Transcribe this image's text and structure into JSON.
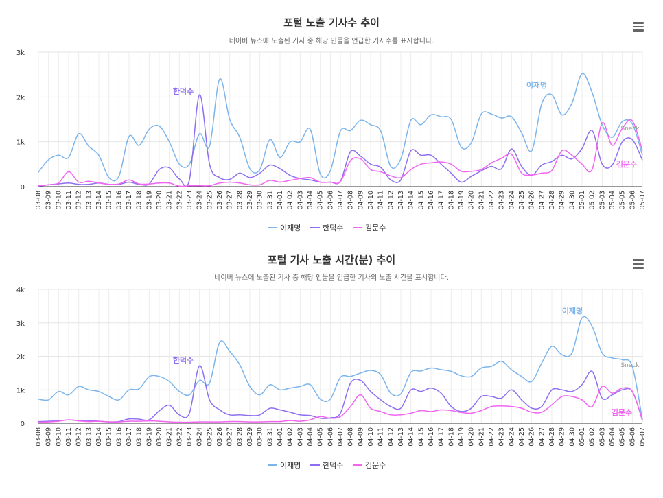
{
  "chart_data": [
    {
      "type": "line",
      "title": "포털 노출 기사수 추이",
      "subtitle": "네이버 뉴스에 노출된 기사 중 해당 인물을 언급한 기사수를 표시합니다.",
      "ylim": [
        0,
        3000
      ],
      "yticks": [
        "0",
        "1k",
        "2k",
        "3k"
      ],
      "categories": [
        "03-08",
        "03-09",
        "03-10",
        "03-11",
        "03-12",
        "03-13",
        "03-14",
        "03-15",
        "03-16",
        "03-17",
        "03-18",
        "03-19",
        "03-20",
        "03-21",
        "03-22",
        "03-23",
        "03-24",
        "03-25",
        "03-26",
        "03-27",
        "03-28",
        "03-29",
        "03-30",
        "03-31",
        "04-01",
        "04-02",
        "04-03",
        "04-04",
        "04-05",
        "04-06",
        "04-07",
        "04-08",
        "04-09",
        "04-10",
        "04-11",
        "04-12",
        "04-13",
        "04-14",
        "04-15",
        "04-16",
        "04-17",
        "04-18",
        "04-19",
        "04-20",
        "04-21",
        "04-22",
        "04-23",
        "04-24",
        "04-25",
        "04-26",
        "04-27",
        "04-28",
        "04-29",
        "04-30",
        "05-01",
        "05-02",
        "05-03",
        "05-04",
        "05-05",
        "05-06",
        "05-07"
      ],
      "series": [
        {
          "name": "이재명",
          "color": "#7cb5ec",
          "values": [
            320,
            600,
            700,
            650,
            1180,
            900,
            700,
            200,
            230,
            1120,
            920,
            1280,
            1350,
            1000,
            500,
            500,
            1180,
            900,
            2400,
            1500,
            1100,
            400,
            380,
            1050,
            650,
            1000,
            1000,
            1280,
            280,
            350,
            1240,
            1250,
            1480,
            1380,
            1240,
            450,
            620,
            1480,
            1380,
            1600,
            1560,
            1500,
            880,
            980,
            1620,
            1620,
            1530,
            1560,
            1200,
            800,
            1850,
            2050,
            1600,
            1860,
            2520,
            2100,
            1380,
            1100,
            1450,
            1400,
            700
          ]
        },
        {
          "name": "한덕수",
          "color": "#8e6ff1",
          "values": [
            10,
            40,
            60,
            80,
            50,
            50,
            80,
            50,
            50,
            100,
            50,
            60,
            380,
            420,
            170,
            150,
            2050,
            500,
            200,
            160,
            300,
            200,
            300,
            480,
            400,
            250,
            180,
            150,
            100,
            100,
            120,
            780,
            680,
            500,
            430,
            150,
            150,
            800,
            700,
            700,
            500,
            300,
            100,
            230,
            350,
            450,
            400,
            840,
            450,
            250,
            480,
            560,
            700,
            620,
            850,
            1250,
            500,
            480,
            1000,
            1050,
            590
          ]
        },
        {
          "name": "김문수",
          "color": "#f165f1",
          "values": [
            20,
            40,
            80,
            330,
            100,
            120,
            80,
            50,
            60,
            150,
            60,
            60,
            80,
            80,
            10,
            20,
            20,
            20,
            80,
            100,
            80,
            40,
            40,
            140,
            100,
            140,
            180,
            200,
            100,
            100,
            110,
            580,
            620,
            380,
            330,
            240,
            200,
            380,
            500,
            530,
            550,
            500,
            340,
            340,
            380,
            530,
            630,
            720,
            300,
            260,
            300,
            360,
            800,
            700,
            500,
            380,
            1420,
            920,
            1300,
            1470,
            800
          ]
        }
      ],
      "annotations": [
        "한덕수",
        "이재명",
        "Sneck",
        "김문수"
      ]
    },
    {
      "type": "line",
      "title": "포털 기사 노출 시간(분) 추이",
      "subtitle": "네이버 뉴스에 노출된 기사 중 해당 인물을 언급한 기사의 노출 시간을 표시합니다.",
      "ylim": [
        0,
        4000
      ],
      "yticks": [
        "0",
        "1k",
        "2k",
        "3k",
        "4k"
      ],
      "categories": [
        "03-08",
        "03-09",
        "03-10",
        "03-11",
        "03-12",
        "03-13",
        "03-14",
        "03-15",
        "03-16",
        "03-17",
        "03-18",
        "03-19",
        "03-20",
        "03-21",
        "03-22",
        "03-23",
        "03-24",
        "03-25",
        "03-26",
        "03-27",
        "03-28",
        "03-29",
        "03-30",
        "03-31",
        "04-01",
        "04-02",
        "04-03",
        "04-04",
        "04-05",
        "04-06",
        "04-07",
        "04-08",
        "04-09",
        "04-10",
        "04-11",
        "04-12",
        "04-13",
        "04-14",
        "04-15",
        "04-16",
        "04-17",
        "04-18",
        "04-19",
        "04-20",
        "04-21",
        "04-22",
        "04-23",
        "04-24",
        "04-25",
        "04-26",
        "04-27",
        "04-28",
        "04-29",
        "04-30",
        "05-01",
        "05-02",
        "05-03",
        "05-04",
        "05-05",
        "05-06",
        "05-07"
      ],
      "series": [
        {
          "name": "이재명",
          "color": "#7cb5ec",
          "values": [
            720,
            700,
            950,
            850,
            1100,
            1000,
            950,
            800,
            700,
            1000,
            1030,
            1390,
            1400,
            1250,
            950,
            850,
            1280,
            1200,
            2420,
            2150,
            1750,
            1100,
            850,
            1150,
            1000,
            1050,
            1100,
            1150,
            720,
            720,
            1370,
            1400,
            1500,
            1580,
            1450,
            900,
            880,
            1520,
            1560,
            1650,
            1600,
            1550,
            1420,
            1400,
            1650,
            1700,
            1850,
            1600,
            1400,
            1250,
            1800,
            2300,
            2050,
            2100,
            3150,
            2900,
            2100,
            1950,
            1900,
            1700,
            100
          ]
        },
        {
          "name": "한덕수",
          "color": "#8e6ff1",
          "values": [
            50,
            60,
            70,
            100,
            80,
            80,
            60,
            40,
            50,
            130,
            120,
            100,
            370,
            540,
            250,
            300,
            1720,
            700,
            400,
            250,
            250,
            230,
            250,
            450,
            400,
            330,
            250,
            230,
            150,
            160,
            300,
            1200,
            1280,
            950,
            700,
            500,
            450,
            1000,
            950,
            1050,
            900,
            500,
            350,
            450,
            800,
            800,
            750,
            1000,
            700,
            450,
            500,
            1000,
            1000,
            950,
            1150,
            1550,
            750,
            850,
            1000,
            950,
            80
          ]
        },
        {
          "name": "김문수",
          "color": "#f165f1",
          "values": [
            30,
            40,
            60,
            100,
            70,
            50,
            60,
            40,
            40,
            60,
            60,
            70,
            60,
            40,
            30,
            30,
            40,
            40,
            40,
            50,
            50,
            40,
            40,
            50,
            50,
            80,
            60,
            100,
            200,
            150,
            200,
            500,
            850,
            450,
            350,
            250,
            250,
            300,
            380,
            350,
            400,
            380,
            320,
            300,
            380,
            500,
            520,
            500,
            450,
            330,
            330,
            550,
            800,
            800,
            700,
            500,
            1100,
            900,
            1050,
            950,
            100
          ]
        }
      ],
      "annotations": [
        "한덕수",
        "이재명",
        "Sneck",
        "김문수"
      ]
    }
  ]
}
